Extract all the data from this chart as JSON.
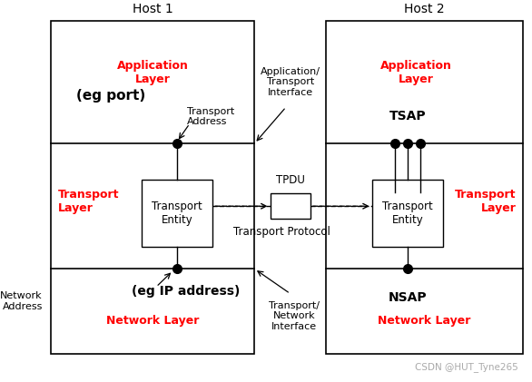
{
  "fig_width": 5.86,
  "fig_height": 4.21,
  "bg_color": "#ffffff",
  "watermark": "CSDN @HUT_Tyne265",
  "red_color": "#ff0000",
  "black_color": "#000000",
  "host1_label": "Host 1",
  "host2_label": "Host 2",
  "app_layer_label": "Application\nLayer",
  "transport_layer_label": "Transport\nLayer",
  "network_layer_label": "Network Layer",
  "transport_entity_label": "Transport\nEntity",
  "tsap_label": "TSAP",
  "nsap_label": "NSAP",
  "eg_port_label": "(eg port)",
  "eg_ip_label": "(eg IP address)",
  "network_address_label": "Network\nAddress",
  "transport_address_label": "Transport\nAddress",
  "app_transport_interface_label": "Application/\nTransport\nInterface",
  "transport_network_interface_label": "Transport/\nNetwork\nInterface",
  "tpdu_label": "TPDU",
  "transport_protocol_label": "Transport Protocol"
}
